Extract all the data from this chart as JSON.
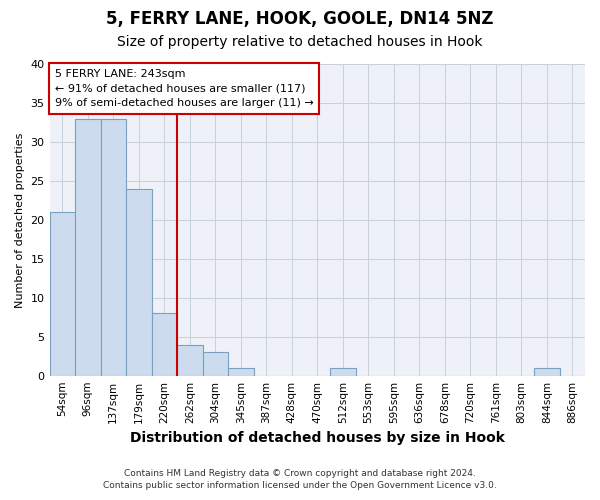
{
  "title": "5, FERRY LANE, HOOK, GOOLE, DN14 5NZ",
  "subtitle": "Size of property relative to detached houses in Hook",
  "xlabel": "Distribution of detached houses by size in Hook",
  "ylabel": "Number of detached properties",
  "bin_labels": [
    "54sqm",
    "96sqm",
    "137sqm",
    "179sqm",
    "220sqm",
    "262sqm",
    "304sqm",
    "345sqm",
    "387sqm",
    "428sqm",
    "470sqm",
    "512sqm",
    "553sqm",
    "595sqm",
    "636sqm",
    "678sqm",
    "720sqm",
    "761sqm",
    "803sqm",
    "844sqm",
    "886sqm"
  ],
  "bar_heights": [
    21,
    33,
    33,
    24,
    8,
    4,
    3,
    1,
    0,
    0,
    0,
    1,
    0,
    0,
    0,
    0,
    0,
    0,
    0,
    1,
    0
  ],
  "bar_color": "#ccdcee",
  "bar_edge_color": "#7aa0c0",
  "annotation_line1": "5 FERRY LANE: 243sqm",
  "annotation_line2": "← 91% of detached houses are smaller (117)",
  "annotation_line3": "9% of semi-detached houses are larger (11) →",
  "annotation_box_color": "#ffffff",
  "annotation_box_edge": "#cc0000",
  "vline_color": "#cc0000",
  "grid_color": "#c8d0dc",
  "background_color": "#eef2f8",
  "footer1": "Contains HM Land Registry data © Crown copyright and database right 2024.",
  "footer2": "Contains public sector information licensed under the Open Government Licence v3.0.",
  "ylim": [
    0,
    40
  ],
  "yticks": [
    0,
    5,
    10,
    15,
    20,
    25,
    30,
    35,
    40
  ],
  "title_fontsize": 12,
  "subtitle_fontsize": 10,
  "xlabel_fontsize": 10,
  "ylabel_fontsize": 8
}
